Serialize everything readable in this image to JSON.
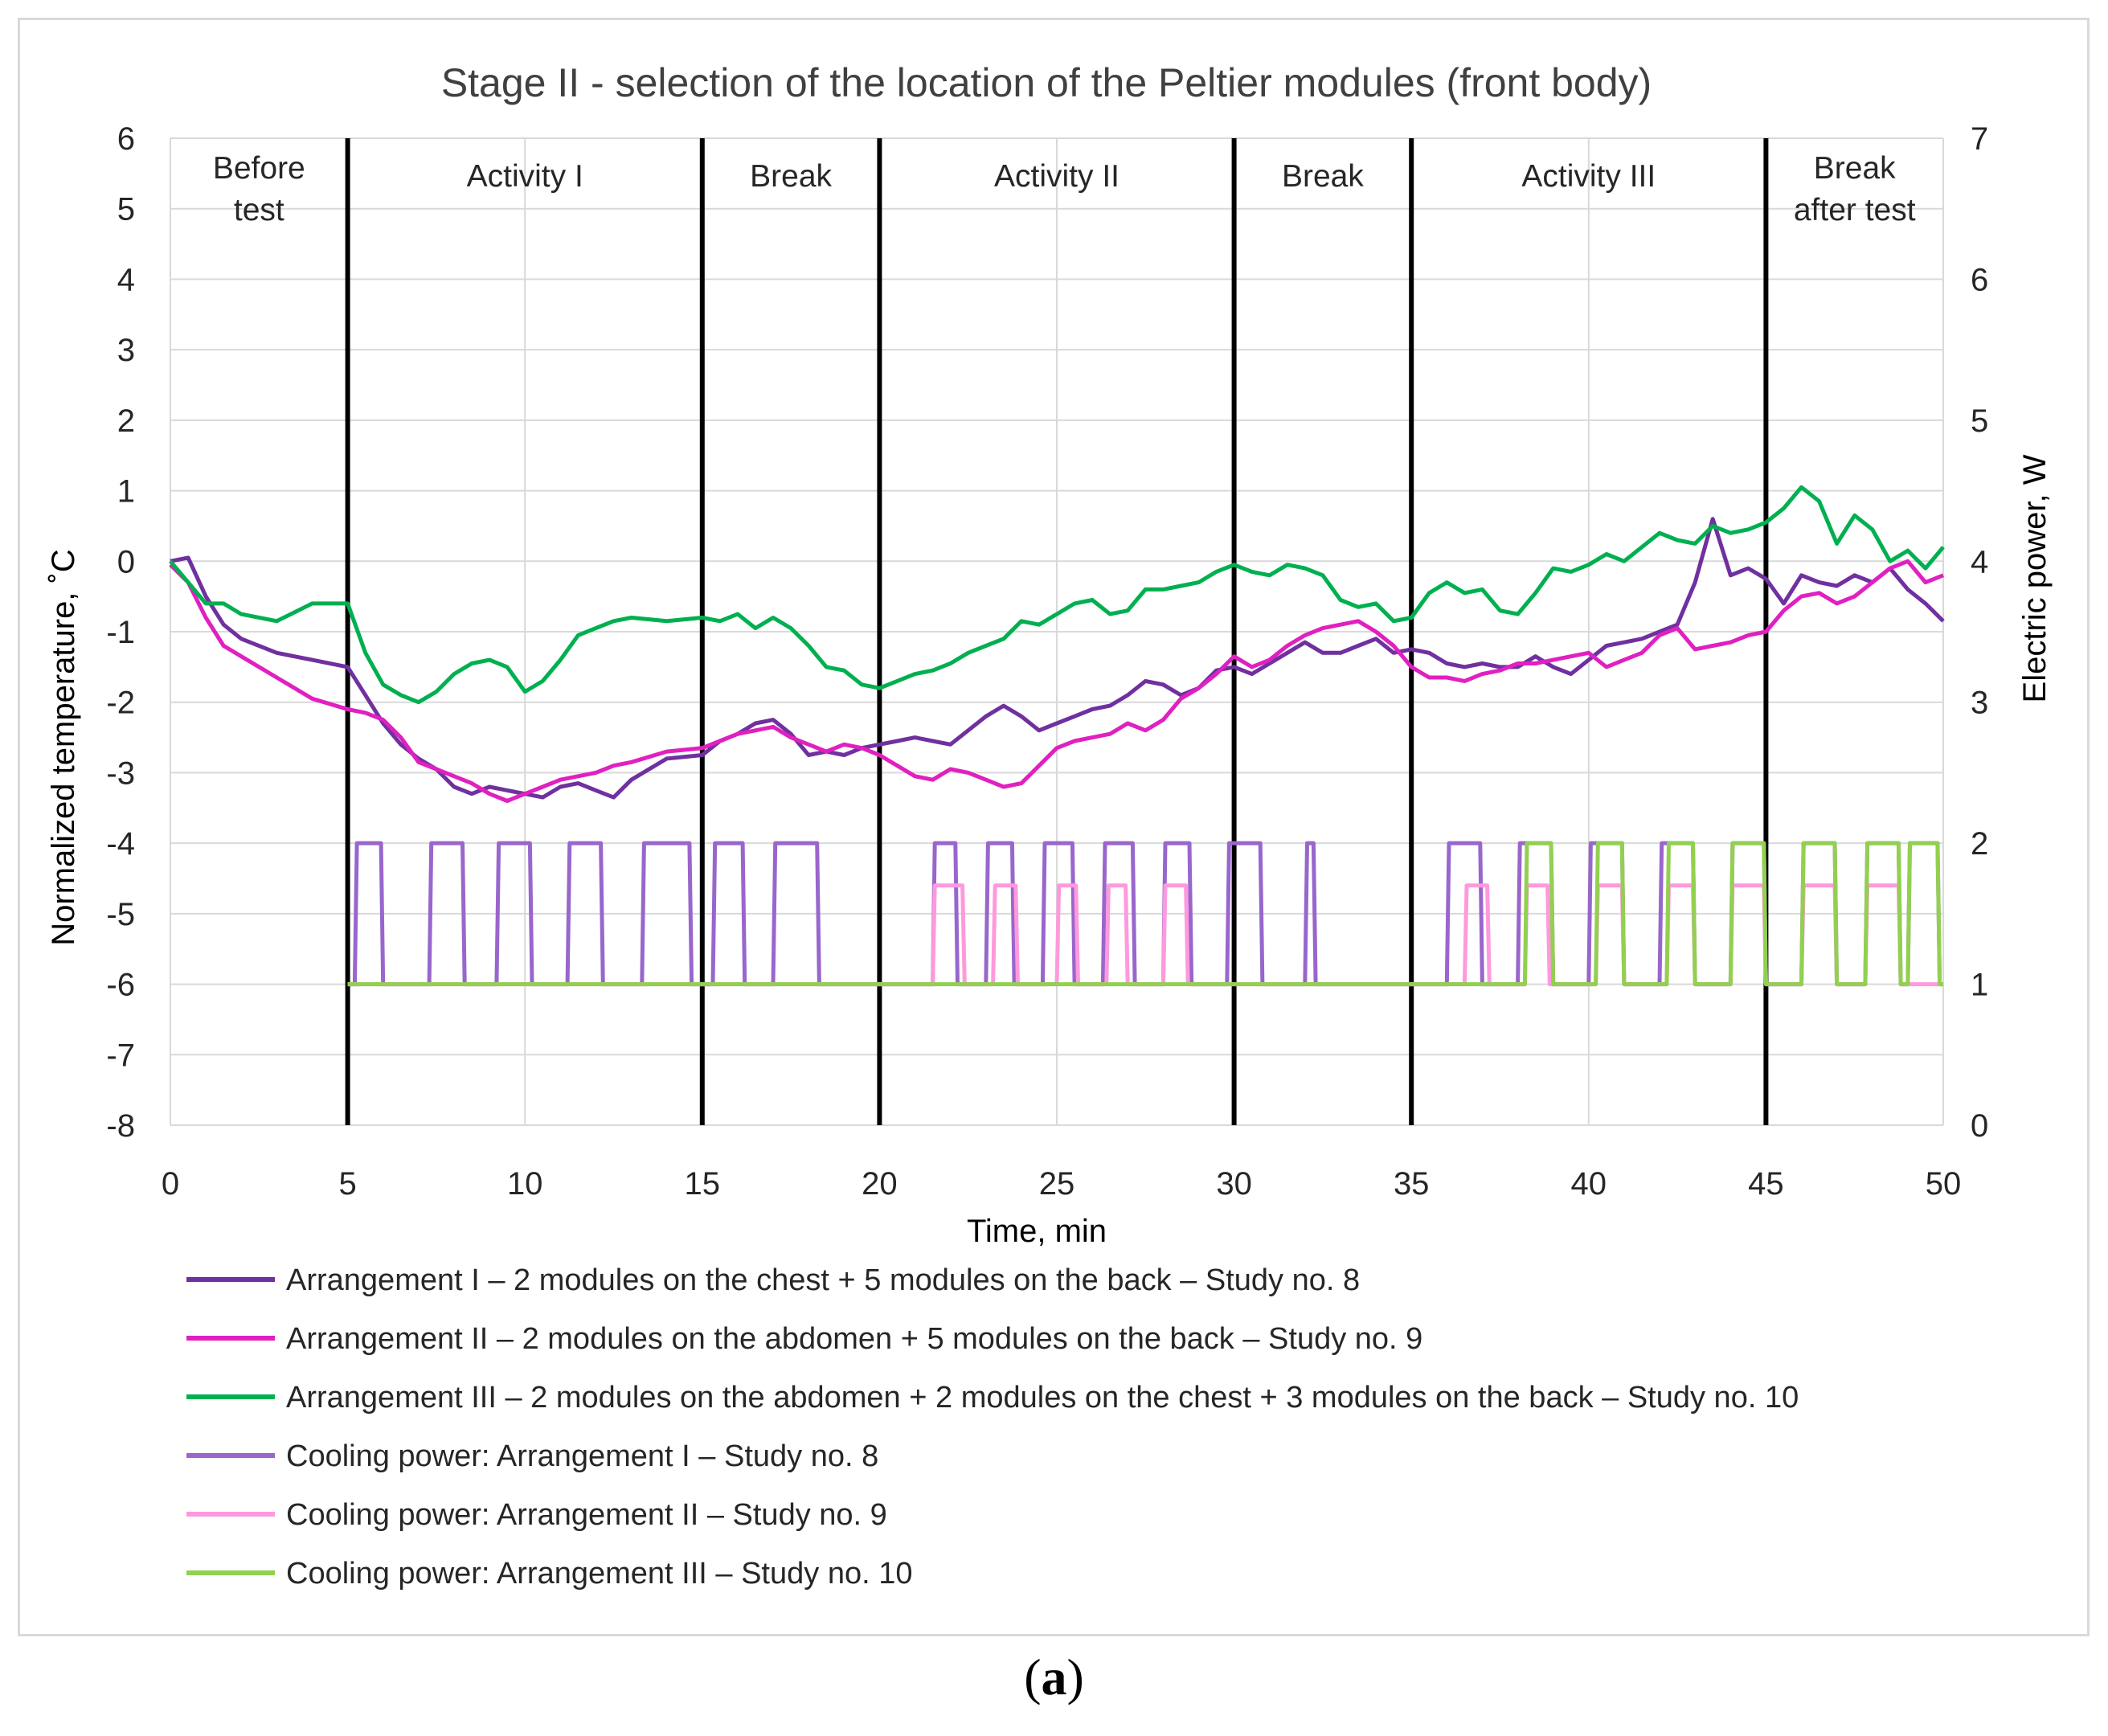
{
  "chart_data": {
    "type": "line",
    "title": "Stage II - selection of the location of the Peltier modules (front body)",
    "xlabel": "Time, min",
    "ylabel": "Normalized  temperature, ˚C",
    "y2label": "Electric power, W",
    "xlim": [
      0,
      50
    ],
    "ylim": [
      -8,
      6
    ],
    "y2lim": [
      0,
      7
    ],
    "xticks": [
      "0",
      "5",
      "10",
      "15",
      "20",
      "25",
      "30",
      "35",
      "40",
      "45",
      "50"
    ],
    "yticks": [
      "6",
      "5",
      "4",
      "3",
      "2",
      "1",
      "0",
      "-1",
      "-2",
      "-3",
      "-4",
      "-5",
      "-6",
      "-7",
      "-8"
    ],
    "y2ticks": [
      "7",
      "6",
      "5",
      "4",
      "3",
      "2",
      "1",
      "0"
    ],
    "phases": [
      {
        "label": "Before test",
        "lines": [
          "Before",
          "test"
        ],
        "start": 0,
        "end": 5
      },
      {
        "label": "Activity I",
        "lines": [
          "Activity I"
        ],
        "start": 5,
        "end": 15
      },
      {
        "label": "Break",
        "lines": [
          "Break"
        ],
        "start": 15,
        "end": 20
      },
      {
        "label": "Activity II",
        "lines": [
          "Activity II"
        ],
        "start": 20,
        "end": 30
      },
      {
        "label": "Break",
        "lines": [
          "Break"
        ],
        "start": 30,
        "end": 35
      },
      {
        "label": "Activity III",
        "lines": [
          "Activity III"
        ],
        "start": 35,
        "end": 45
      },
      {
        "label": "Break after test",
        "lines": [
          "Break",
          "after test"
        ],
        "start": 45,
        "end": 50
      }
    ],
    "phase_boundaries": [
      5,
      15,
      20,
      30,
      35,
      45
    ],
    "temperature_series": [
      {
        "name": "Arrangement I – 2 modules on the chest + 5 modules on the back – Study no. 8",
        "color": "#7030a0",
        "x": [
          0,
          0.5,
          1,
          1.5,
          2,
          3,
          4,
          5,
          5.5,
          6,
          6.5,
          7,
          7.5,
          8,
          8.5,
          9,
          9.5,
          10,
          10.5,
          11,
          11.5,
          12,
          12.5,
          13,
          14,
          15,
          15.5,
          16,
          16.5,
          17,
          17.5,
          18,
          18.5,
          19,
          19.5,
          20,
          20.5,
          21,
          21.5,
          22,
          22.5,
          23,
          23.5,
          24,
          24.5,
          25,
          25.5,
          26,
          26.5,
          27,
          27.5,
          28,
          28.5,
          29,
          29.5,
          30,
          30.5,
          31,
          31.5,
          32,
          32.5,
          33,
          33.5,
          34,
          34.5,
          35,
          35.5,
          36,
          36.5,
          37,
          37.5,
          38,
          38.5,
          39,
          39.5,
          40,
          40.5,
          41,
          41.5,
          42,
          42.5,
          43,
          43.5,
          44,
          44.5,
          45,
          45.5,
          46,
          46.5,
          47,
          47.5,
          48,
          48.5,
          49,
          49.5,
          50
        ],
        "y": [
          0,
          0.05,
          -0.5,
          -0.9,
          -1.1,
          -1.3,
          -1.4,
          -1.5,
          -1.9,
          -2.3,
          -2.6,
          -2.8,
          -2.95,
          -3.2,
          -3.3,
          -3.2,
          -3.25,
          -3.3,
          -3.35,
          -3.2,
          -3.15,
          -3.25,
          -3.35,
          -3.1,
          -2.8,
          -2.75,
          -2.55,
          -2.45,
          -2.3,
          -2.25,
          -2.45,
          -2.75,
          -2.7,
          -2.75,
          -2.65,
          -2.6,
          -2.55,
          -2.5,
          -2.55,
          -2.6,
          -2.4,
          -2.2,
          -2.05,
          -2.2,
          -2.4,
          -2.3,
          -2.2,
          -2.1,
          -2.05,
          -1.9,
          -1.7,
          -1.75,
          -1.9,
          -1.8,
          -1.55,
          -1.5,
          -1.6,
          -1.45,
          -1.3,
          -1.15,
          -1.3,
          -1.3,
          -1.2,
          -1.1,
          -1.3,
          -1.25,
          -1.3,
          -1.45,
          -1.5,
          -1.45,
          -1.5,
          -1.5,
          -1.35,
          -1.5,
          -1.6,
          -1.4,
          -1.2,
          -1.15,
          -1.1,
          -1.0,
          -0.9,
          -0.3,
          0.6,
          -0.2,
          -0.1,
          -0.25,
          -0.6,
          -0.2,
          -0.3,
          -0.35,
          -0.2,
          -0.3,
          -0.1,
          -0.4,
          -0.6,
          -0.85
        ]
      },
      {
        "name": "Arrangement II – 2 modules on the abdomen + 5 modules on the back – Study no. 9",
        "color": "#e020c0",
        "x": [
          0,
          0.5,
          1,
          1.5,
          2,
          3,
          4,
          5,
          5.5,
          6,
          6.5,
          7,
          7.5,
          8,
          8.5,
          9,
          9.5,
          10,
          10.5,
          11,
          11.5,
          12,
          12.5,
          13,
          14,
          15,
          15.5,
          16,
          16.5,
          17,
          17.5,
          18,
          18.5,
          19,
          19.5,
          20,
          20.5,
          21,
          21.5,
          22,
          22.5,
          23,
          23.5,
          24,
          24.5,
          25,
          25.5,
          26,
          26.5,
          27,
          27.5,
          28,
          28.5,
          29,
          29.5,
          30,
          30.5,
          31,
          31.5,
          32,
          32.5,
          33,
          33.5,
          34,
          34.5,
          35,
          35.5,
          36,
          36.5,
          37,
          37.5,
          38,
          38.5,
          39,
          39.5,
          40,
          40.5,
          41,
          41.5,
          42,
          42.5,
          43,
          43.5,
          44,
          44.5,
          45,
          45.5,
          46,
          46.5,
          47,
          47.5,
          48,
          48.5,
          49,
          49.5,
          50
        ],
        "y": [
          -0.05,
          -0.3,
          -0.8,
          -1.2,
          -1.35,
          -1.65,
          -1.95,
          -2.1,
          -2.15,
          -2.25,
          -2.5,
          -2.85,
          -2.95,
          -3.05,
          -3.15,
          -3.3,
          -3.4,
          -3.3,
          -3.2,
          -3.1,
          -3.05,
          -3.0,
          -2.9,
          -2.85,
          -2.7,
          -2.65,
          -2.55,
          -2.45,
          -2.4,
          -2.35,
          -2.5,
          -2.6,
          -2.7,
          -2.6,
          -2.65,
          -2.75,
          -2.9,
          -3.05,
          -3.1,
          -2.95,
          -3.0,
          -3.1,
          -3.2,
          -3.15,
          -2.9,
          -2.65,
          -2.55,
          -2.5,
          -2.45,
          -2.3,
          -2.4,
          -2.25,
          -1.95,
          -1.8,
          -1.6,
          -1.35,
          -1.5,
          -1.4,
          -1.2,
          -1.05,
          -0.95,
          -0.9,
          -0.85,
          -1.0,
          -1.2,
          -1.5,
          -1.65,
          -1.65,
          -1.7,
          -1.6,
          -1.55,
          -1.45,
          -1.45,
          -1.4,
          -1.35,
          -1.3,
          -1.5,
          -1.4,
          -1.3,
          -1.05,
          -0.95,
          -1.25,
          -1.2,
          -1.15,
          -1.05,
          -1.0,
          -0.7,
          -0.5,
          -0.45,
          -0.6,
          -0.5,
          -0.3,
          -0.1,
          0.0,
          -0.3,
          -0.2
        ]
      },
      {
        "name": "Arrangement III – 2 modules on the abdomen + 2 modules on the chest + 3 modules on the back – Study no. 10",
        "color": "#00b050",
        "x": [
          0,
          0.5,
          1,
          1.5,
          2,
          3,
          4,
          5,
          5.5,
          6,
          6.5,
          7,
          7.5,
          8,
          8.5,
          9,
          9.5,
          10,
          10.5,
          11,
          11.5,
          12,
          12.5,
          13,
          14,
          15,
          15.5,
          16,
          16.5,
          17,
          17.5,
          18,
          18.5,
          19,
          19.5,
          20,
          20.5,
          21,
          21.5,
          22,
          22.5,
          23,
          23.5,
          24,
          24.5,
          25,
          25.5,
          26,
          26.5,
          27,
          27.5,
          28,
          28.5,
          29,
          29.5,
          30,
          30.5,
          31,
          31.5,
          32,
          32.5,
          33,
          33.5,
          34,
          34.5,
          35,
          35.5,
          36,
          36.5,
          37,
          37.5,
          38,
          38.5,
          39,
          39.5,
          40,
          40.5,
          41,
          41.5,
          42,
          42.5,
          43,
          43.5,
          44,
          44.5,
          45,
          45.5,
          46,
          46.5,
          47,
          47.5,
          48,
          48.5,
          49,
          49.5,
          50
        ],
        "y": [
          0,
          -0.3,
          -0.6,
          -0.6,
          -0.75,
          -0.85,
          -0.6,
          -0.6,
          -1.3,
          -1.75,
          -1.9,
          -2.0,
          -1.85,
          -1.6,
          -1.45,
          -1.4,
          -1.5,
          -1.85,
          -1.7,
          -1.4,
          -1.05,
          -0.95,
          -0.85,
          -0.8,
          -0.85,
          -0.8,
          -0.85,
          -0.75,
          -0.95,
          -0.8,
          -0.95,
          -1.2,
          -1.5,
          -1.55,
          -1.75,
          -1.8,
          -1.7,
          -1.6,
          -1.55,
          -1.45,
          -1.3,
          -1.2,
          -1.1,
          -0.85,
          -0.9,
          -0.75,
          -0.6,
          -0.55,
          -0.75,
          -0.7,
          -0.4,
          -0.4,
          -0.35,
          -0.3,
          -0.15,
          -0.05,
          -0.15,
          -0.2,
          -0.05,
          -0.1,
          -0.2,
          -0.55,
          -0.65,
          -0.6,
          -0.85,
          -0.8,
          -0.45,
          -0.3,
          -0.45,
          -0.4,
          -0.7,
          -0.75,
          -0.45,
          -0.1,
          -0.15,
          -0.05,
          0.1,
          0.0,
          0.2,
          0.4,
          0.3,
          0.25,
          0.5,
          0.4,
          0.45,
          0.55,
          0.75,
          1.05,
          0.85,
          0.25,
          0.65,
          0.45,
          0.0,
          0.15,
          -0.1,
          0.2
        ]
      }
    ],
    "power_series": [
      {
        "name": "Cooling power: Arrangement I – Study no. 8",
        "color": "#9966cc",
        "segments": [
          [
            5.2,
            6.0
          ],
          [
            7.3,
            8.3
          ],
          [
            9.2,
            10.2
          ],
          [
            11.2,
            12.2
          ],
          [
            13.3,
            14.7
          ],
          [
            15.3,
            16.2
          ],
          [
            17.0,
            18.3
          ],
          [
            21.5,
            22.2
          ],
          [
            23.0,
            23.8
          ],
          [
            24.6,
            25.5
          ],
          [
            26.3,
            27.2
          ],
          [
            28.0,
            28.8
          ],
          [
            29.8,
            30.8
          ],
          [
            32.0,
            32.3
          ],
          [
            36.0,
            37.0
          ],
          [
            38.0,
            39.0
          ],
          [
            40.0,
            41.0
          ],
          [
            42.0,
            43.0
          ],
          [
            44.0,
            45.0
          ],
          [
            46.0,
            47.0
          ],
          [
            47.8,
            48.8
          ],
          [
            49.0,
            49.9
          ]
        ],
        "base": 1.0,
        "high": 2.0
      },
      {
        "name": "Cooling power: Arrangement II – Study no. 9",
        "color": "#ff99dd",
        "segments": [
          [
            21.5,
            22.4
          ],
          [
            23.2,
            23.9
          ],
          [
            25.0,
            25.6
          ],
          [
            26.4,
            27.0
          ],
          [
            28.0,
            28.7
          ],
          [
            36.5,
            37.2
          ],
          [
            38.2,
            38.9
          ],
          [
            40.2,
            41.0
          ],
          [
            42.2,
            43.0
          ],
          [
            44.0,
            45.0
          ],
          [
            46.0,
            47.0
          ],
          [
            47.8,
            48.8
          ]
        ],
        "base": 1.0,
        "high": 1.7
      },
      {
        "name": "Cooling power: Arrangement III – Study no. 10",
        "color": "#92d050",
        "segments": [
          [
            38.2,
            39.0
          ],
          [
            40.2,
            41.0
          ],
          [
            42.2,
            43.0
          ],
          [
            44.0,
            45.0
          ],
          [
            46.0,
            47.0
          ],
          [
            47.8,
            48.8
          ],
          [
            49.0,
            49.9
          ]
        ],
        "base": 1.0,
        "high": 2.0
      }
    ],
    "legend": [
      {
        "label": "Arrangement I – 2 modules on the chest + 5 modules on the back – Study no. 8",
        "color": "#7030a0"
      },
      {
        "label": "Arrangement II – 2 modules on the abdomen + 5 modules on the back – Study no. 9",
        "color": "#e020c0"
      },
      {
        "label": "Arrangement III – 2 modules on the abdomen + 2 modules on the chest + 3 modules on the back – Study no. 10",
        "color": "#00b050"
      },
      {
        "label": "Cooling power: Arrangement I – Study no. 8",
        "color": "#9966cc"
      },
      {
        "label": "Cooling power: Arrangement II – Study no. 9",
        "color": "#ff99dd"
      },
      {
        "label": "Cooling power: Arrangement III – Study no. 10",
        "color": "#92d050"
      }
    ],
    "legend_position": "bottom-left"
  },
  "caption": {
    "open": "(",
    "letter": "a",
    "close": ")"
  }
}
